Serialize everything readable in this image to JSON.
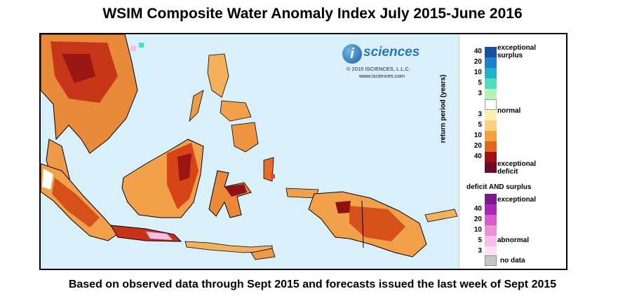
{
  "title": "WSIM Composite Water Anomaly Index July 2015-June 2016",
  "caption": "Based on observed data through Sept 2015 and forecasts issued the last week of Sept 2015",
  "logo": {
    "brand_i": "i",
    "brand_rest": "sciences",
    "copyright": "© 2015 ISCIENCES, L.L.C.",
    "url": "www.isciences.com"
  },
  "legend": {
    "axis_label": "return period (years)",
    "main_labels": {
      "surplus": [
        "exceptional",
        "surplus"
      ],
      "normal": "normal",
      "deficit": [
        "exceptional",
        "deficit"
      ]
    },
    "main_scale": [
      {
        "tick": "40",
        "color": "#1a4fa0"
      },
      {
        "tick": "20",
        "color": "#1f7fd0"
      },
      {
        "tick": "10",
        "color": "#1bb4c8"
      },
      {
        "tick": "5",
        "color": "#4fdcc0"
      },
      {
        "tick": "3",
        "color": "#b6f2b6"
      },
      {
        "tick": "",
        "color": "#ffffff"
      },
      {
        "tick": "3",
        "color": "#fbf0b4"
      },
      {
        "tick": "5",
        "color": "#fdd27a"
      },
      {
        "tick": "10",
        "color": "#f8a13c"
      },
      {
        "tick": "20",
        "color": "#e2661e"
      },
      {
        "tick": "40",
        "color": "#a11010"
      },
      {
        "tick": "",
        "color": "#6b0a2e"
      }
    ],
    "both_title": "deficit AND surplus",
    "both_labels": {
      "top": "exceptional",
      "bottom": "abnormal"
    },
    "both_scale": [
      {
        "tick": "",
        "color": "#7a1a8c"
      },
      {
        "tick": "40",
        "color": "#a928b8"
      },
      {
        "tick": "20",
        "color": "#d65cc8"
      },
      {
        "tick": "10",
        "color": "#ee8fd8"
      },
      {
        "tick": "5",
        "color": "#f8bde8"
      },
      {
        "tick": "3",
        "color": "#fde0f4"
      }
    ],
    "no_data_label": "no data",
    "no_data_color": "#c8c8c8"
  }
}
